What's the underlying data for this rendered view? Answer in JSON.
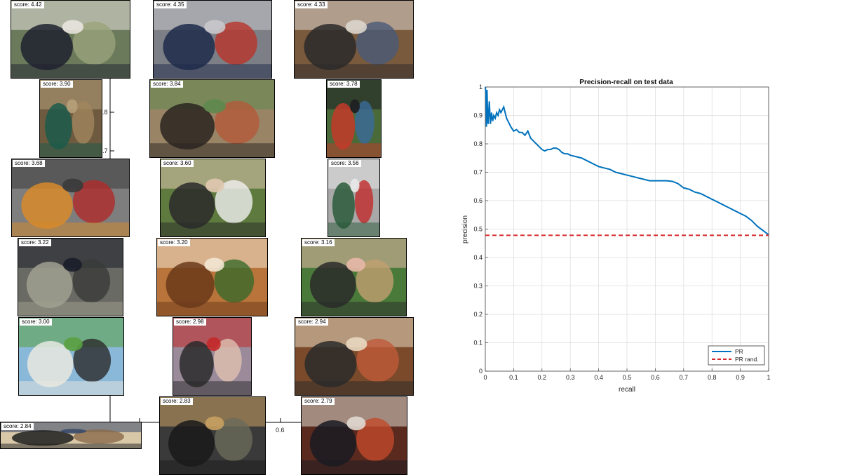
{
  "thumbnails": [
    {
      "score": "score: 4.42",
      "palette": [
        "#6b7a5a",
        "#e8e4de",
        "#1f2230",
        "#9aa37a"
      ],
      "subject": "horse-riders"
    },
    {
      "score": "score: 4.35",
      "palette": [
        "#7d7f86",
        "#c9c9cc",
        "#1d2a4a",
        "#b8352a"
      ],
      "subject": "bicycles-crowd"
    },
    {
      "score": "score: 4.33",
      "palette": [
        "#7a5a3c",
        "#dcd6cc",
        "#2c2a2a",
        "#4a5a78"
      ],
      "subject": "people-on-floor"
    },
    {
      "score": "score: 3.90",
      "palette": [
        "#6e5a3f",
        "#b5a07a",
        "#1b5a4a",
        "#a0865e"
      ],
      "subject": "hummingbird"
    },
    {
      "score": "score: 3.84",
      "palette": [
        "#9a8466",
        "#5e8a4e",
        "#2a2420",
        "#b35a3a"
      ],
      "subject": "water-buffalo"
    },
    {
      "score": "score: 3.78",
      "palette": [
        "#4a6a3a",
        "#1e1e22",
        "#c43a2a",
        "#3a6a9a"
      ],
      "subject": "jockey"
    },
    {
      "score": "score: 3.68",
      "palette": [
        "#7e7e7e",
        "#3a3a3a",
        "#d88a2a",
        "#b02a2a"
      ],
      "subject": "cyclists"
    },
    {
      "score": "score: 3.60",
      "palette": [
        "#5e7a3e",
        "#e0c8b0",
        "#2a2a2a",
        "#f0f0f0"
      ],
      "subject": "three-people"
    },
    {
      "score": "score: 3.56",
      "palette": [
        "#a8a8a8",
        "#e8e8e8",
        "#2a5a3a",
        "#c02a2a"
      ],
      "subject": "bus"
    },
    {
      "score": "score: 3.22",
      "palette": [
        "#6a6a64",
        "#1a1e2a",
        "#a0a090",
        "#3a3a3a"
      ],
      "subject": "motorbike-repair"
    },
    {
      "score": "score: 3.20",
      "palette": [
        "#b8743a",
        "#f2e6d2",
        "#6a3a1a",
        "#3a6a2a"
      ],
      "subject": "food-plate"
    },
    {
      "score": "score: 3.16",
      "palette": [
        "#4a7a3a",
        "#e8b8a8",
        "#2a2a2a",
        "#c0a070"
      ],
      "subject": "man-portrait"
    },
    {
      "score": "score: 3.00",
      "palette": [
        "#8ab8d8",
        "#5aa040",
        "#e8e8e0",
        "#2a2a2a"
      ],
      "subject": "green-bus"
    },
    {
      "score": "score: 2.98",
      "palette": [
        "#9a8a9a",
        "#c42a2a",
        "#2a2a2a",
        "#e0c0b0"
      ],
      "subject": "group-london"
    },
    {
      "score": "score: 2.94",
      "palette": [
        "#7a4a2a",
        "#e8d8c0",
        "#2a2a2a",
        "#c05a3a"
      ],
      "subject": "dinner-table"
    },
    {
      "score": "score: 2.84",
      "palette": [
        "#d8c8a8",
        "#3a4a6a",
        "#1e1e1e",
        "#8a6a4a"
      ],
      "subject": "cafe"
    },
    {
      "score": "score: 2.83",
      "palette": [
        "#3a3a3a",
        "#c8a060",
        "#1a1a1a",
        "#6a6a5a"
      ],
      "subject": "workshop"
    },
    {
      "score": "score: 2.79",
      "palette": [
        "#5a2a1e",
        "#e0d8d0",
        "#1a1a22",
        "#c04a2a"
      ],
      "subject": "restaurant"
    }
  ],
  "behind_axis": {
    "y_ticks": [
      ".8",
      ".7"
    ],
    "x_ticks": [
      "0.6"
    ]
  },
  "chart_data": {
    "type": "line",
    "title": "Precision-recall on test data",
    "xlabel": "recall",
    "ylabel": "precision",
    "xlim": [
      0,
      1
    ],
    "ylim": [
      0,
      1
    ],
    "xticks": [
      "0",
      "0.1",
      "0.2",
      "0.3",
      "0.4",
      "0.5",
      "0.6",
      "0.7",
      "0.8",
      "0.9",
      "1"
    ],
    "yticks": [
      "0",
      "0.1",
      "0.2",
      "0.3",
      "0.4",
      "0.5",
      "0.6",
      "0.7",
      "0.8",
      "0.9",
      "1"
    ],
    "grid": true,
    "legend_position": "bottom-right",
    "series": [
      {
        "name": "PR",
        "color": "#0072bd",
        "style": "solid",
        "x": [
          0,
          0.002,
          0.004,
          0.006,
          0.008,
          0.01,
          0.014,
          0.018,
          0.022,
          0.026,
          0.03,
          0.035,
          0.04,
          0.045,
          0.05,
          0.055,
          0.06,
          0.065,
          0.07,
          0.075,
          0.08,
          0.085,
          0.09,
          0.1,
          0.11,
          0.12,
          0.13,
          0.14,
          0.15,
          0.16,
          0.17,
          0.18,
          0.19,
          0.2,
          0.21,
          0.22,
          0.23,
          0.24,
          0.25,
          0.26,
          0.27,
          0.28,
          0.29,
          0.3,
          0.32,
          0.34,
          0.36,
          0.38,
          0.4,
          0.42,
          0.44,
          0.46,
          0.48,
          0.5,
          0.52,
          0.54,
          0.56,
          0.58,
          0.6,
          0.62,
          0.64,
          0.66,
          0.68,
          0.7,
          0.72,
          0.74,
          0.76,
          0.78,
          0.8,
          0.82,
          0.84,
          0.86,
          0.88,
          0.9,
          0.92,
          0.94,
          0.96,
          0.98,
          1.0
        ],
        "y": [
          1.0,
          0.98,
          0.86,
          0.99,
          0.9,
          0.87,
          0.95,
          0.87,
          0.91,
          0.88,
          0.9,
          0.89,
          0.91,
          0.9,
          0.92,
          0.91,
          0.92,
          0.93,
          0.91,
          0.89,
          0.88,
          0.87,
          0.86,
          0.845,
          0.85,
          0.84,
          0.84,
          0.83,
          0.845,
          0.82,
          0.81,
          0.8,
          0.79,
          0.78,
          0.775,
          0.78,
          0.78,
          0.785,
          0.785,
          0.78,
          0.77,
          0.765,
          0.765,
          0.76,
          0.755,
          0.75,
          0.74,
          0.73,
          0.72,
          0.715,
          0.71,
          0.7,
          0.695,
          0.69,
          0.685,
          0.68,
          0.675,
          0.67,
          0.67,
          0.67,
          0.67,
          0.668,
          0.66,
          0.645,
          0.64,
          0.63,
          0.625,
          0.615,
          0.605,
          0.595,
          0.585,
          0.575,
          0.565,
          0.555,
          0.545,
          0.53,
          0.51,
          0.495,
          0.48
        ]
      },
      {
        "name": "PR rand.",
        "color": "#d62728",
        "style": "dashed",
        "x": [
          0,
          1
        ],
        "y": [
          0.478,
          0.478
        ]
      }
    ]
  }
}
